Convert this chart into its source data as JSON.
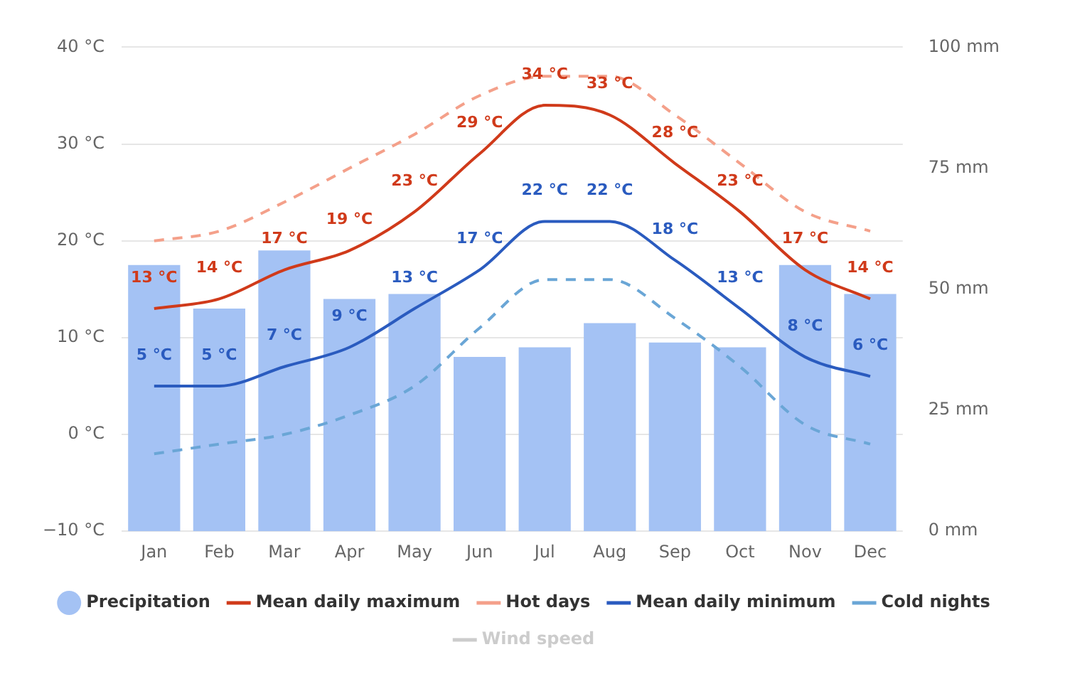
{
  "chart_data": {
    "type": "line",
    "categories": [
      "Jan",
      "Feb",
      "Mar",
      "Apr",
      "May",
      "Jun",
      "Jul",
      "Aug",
      "Sep",
      "Oct",
      "Nov",
      "Dec"
    ],
    "ylim": [
      -10,
      40
    ],
    "yticks": [
      {
        "value": -10,
        "label": "−10 °C"
      },
      {
        "value": 0,
        "label": "0 °C"
      },
      {
        "value": 10,
        "label": "10 °C"
      },
      {
        "value": 20,
        "label": "20 °C"
      },
      {
        "value": 30,
        "label": "30 °C"
      },
      {
        "value": 40,
        "label": "40 °C"
      }
    ],
    "y2lim": [
      0,
      100
    ],
    "y2ticks": [
      {
        "value": 0,
        "label": "0 mm"
      },
      {
        "value": 25,
        "label": "25 mm"
      },
      {
        "value": 50,
        "label": "50 mm"
      },
      {
        "value": 75,
        "label": "75 mm"
      },
      {
        "value": 100,
        "label": "100 mm"
      }
    ],
    "grid": "y",
    "legend": "bottom",
    "series": [
      {
        "name": "Precipitation",
        "type": "bar",
        "axis": "y2",
        "color": "#a4c2f4",
        "values": [
          55,
          46,
          58,
          48,
          49,
          36,
          38,
          43,
          39,
          38,
          55,
          49
        ]
      },
      {
        "name": "Mean daily maximum",
        "color": "#d03a1a",
        "line_style": "solid",
        "values": [
          13,
          14,
          17,
          19,
          23,
          29,
          34,
          33,
          28,
          23,
          17,
          14
        ],
        "value_labels": [
          "13 °C",
          "14 °C",
          "17 °C",
          "19 °C",
          "23 °C",
          "29 °C",
          "34 °C",
          "33 °C",
          "28 °C",
          "23 °C",
          "17 °C",
          "14 °C"
        ]
      },
      {
        "name": "Hot days",
        "color": "#f4a08a",
        "line_style": "dashed",
        "values": [
          20,
          21,
          24,
          27.5,
          31,
          35,
          37,
          37,
          33,
          28,
          23,
          21
        ]
      },
      {
        "name": "Mean daily minimum",
        "color": "#2a5bbf",
        "line_style": "solid",
        "values": [
          5,
          5,
          7,
          9,
          13,
          17,
          22,
          22,
          18,
          13,
          8,
          6
        ],
        "value_labels": [
          "5 °C",
          "5 °C",
          "7 °C",
          "9 °C",
          "13 °C",
          "17 °C",
          "22 °C",
          "22 °C",
          "18 °C",
          "13 °C",
          "8 °C",
          "6 °C"
        ]
      },
      {
        "name": "Cold nights",
        "color": "#6aa6d6",
        "line_style": "dashed",
        "values": [
          -2,
          -1,
          0,
          2,
          5,
          11,
          16,
          16,
          12,
          7,
          1,
          -1
        ]
      },
      {
        "name": "Wind speed",
        "color": "#cccccc",
        "line_style": "solid",
        "values": [
          null,
          null,
          null,
          null,
          null,
          null,
          null,
          null,
          null,
          null,
          null,
          null
        ]
      }
    ]
  }
}
